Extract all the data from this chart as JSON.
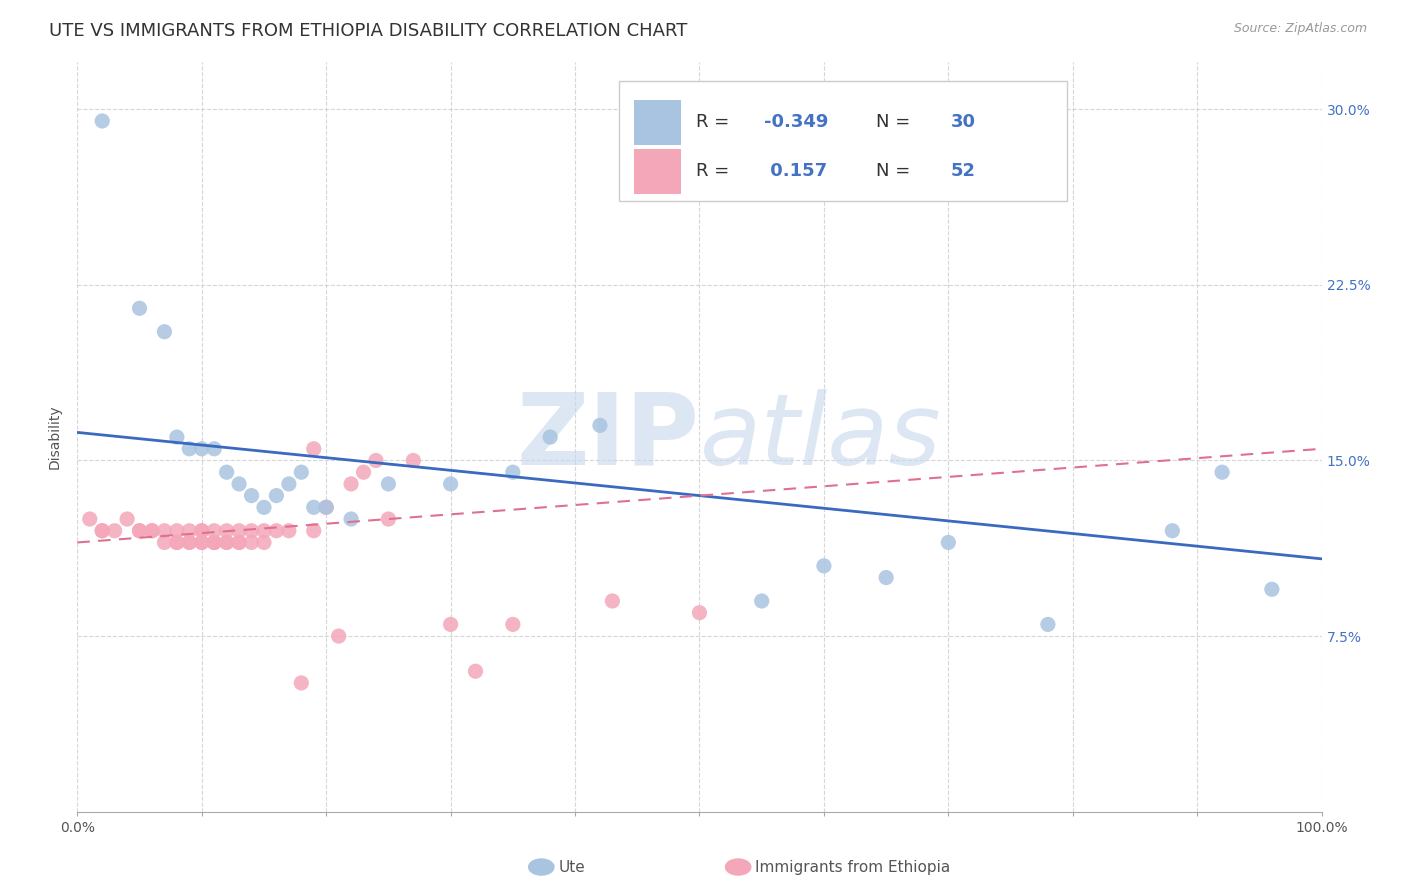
{
  "title": "UTE VS IMMIGRANTS FROM ETHIOPIA DISABILITY CORRELATION CHART",
  "source_text": "Source: ZipAtlas.com",
  "ylabel": "Disability",
  "xlim": [
    0.0,
    1.0
  ],
  "ylim": [
    0.0,
    0.32
  ],
  "yticks": [
    0.075,
    0.15,
    0.225,
    0.3
  ],
  "ytick_labels": [
    "7.5%",
    "15.0%",
    "22.5%",
    "30.0%"
  ],
  "watermark_zip": "ZIP",
  "watermark_atlas": "atlas",
  "ute_color": "#a8c4e0",
  "eth_color": "#f4a7b9",
  "ute_line_color": "#3a6abf",
  "eth_line_color": "#e07090",
  "R_ute": -0.349,
  "N_ute": 30,
  "R_eth": 0.157,
  "N_eth": 52,
  "ute_scatter_x": [
    0.02,
    0.05,
    0.07,
    0.08,
    0.09,
    0.1,
    0.11,
    0.12,
    0.13,
    0.14,
    0.15,
    0.16,
    0.17,
    0.18,
    0.19,
    0.2,
    0.22,
    0.25,
    0.3,
    0.35,
    0.38,
    0.42,
    0.55,
    0.6,
    0.65,
    0.7,
    0.78,
    0.88,
    0.92,
    0.96
  ],
  "ute_scatter_y": [
    0.295,
    0.215,
    0.205,
    0.16,
    0.155,
    0.155,
    0.155,
    0.145,
    0.14,
    0.135,
    0.13,
    0.135,
    0.14,
    0.145,
    0.13,
    0.13,
    0.125,
    0.14,
    0.14,
    0.145,
    0.16,
    0.165,
    0.09,
    0.105,
    0.1,
    0.115,
    0.08,
    0.12,
    0.145,
    0.095
  ],
  "eth_scatter_x": [
    0.01,
    0.02,
    0.02,
    0.03,
    0.04,
    0.05,
    0.05,
    0.06,
    0.06,
    0.07,
    0.07,
    0.08,
    0.08,
    0.08,
    0.09,
    0.09,
    0.09,
    0.1,
    0.1,
    0.1,
    0.1,
    0.11,
    0.11,
    0.11,
    0.11,
    0.12,
    0.12,
    0.12,
    0.13,
    0.13,
    0.13,
    0.14,
    0.14,
    0.15,
    0.15,
    0.16,
    0.17,
    0.18,
    0.19,
    0.19,
    0.2,
    0.21,
    0.22,
    0.23,
    0.24,
    0.25,
    0.27,
    0.3,
    0.32,
    0.35,
    0.43,
    0.5
  ],
  "eth_scatter_y": [
    0.125,
    0.12,
    0.12,
    0.12,
    0.125,
    0.12,
    0.12,
    0.12,
    0.12,
    0.12,
    0.115,
    0.12,
    0.115,
    0.115,
    0.12,
    0.115,
    0.115,
    0.12,
    0.12,
    0.115,
    0.115,
    0.12,
    0.115,
    0.115,
    0.115,
    0.12,
    0.115,
    0.115,
    0.12,
    0.115,
    0.115,
    0.12,
    0.115,
    0.12,
    0.115,
    0.12,
    0.12,
    0.055,
    0.12,
    0.155,
    0.13,
    0.075,
    0.14,
    0.145,
    0.15,
    0.125,
    0.15,
    0.08,
    0.06,
    0.08,
    0.09,
    0.085
  ],
  "background_color": "#ffffff",
  "grid_color": "#cccccc",
  "title_fontsize": 13,
  "axis_label_fontsize": 10,
  "tick_fontsize": 10,
  "legend_fontsize": 13
}
